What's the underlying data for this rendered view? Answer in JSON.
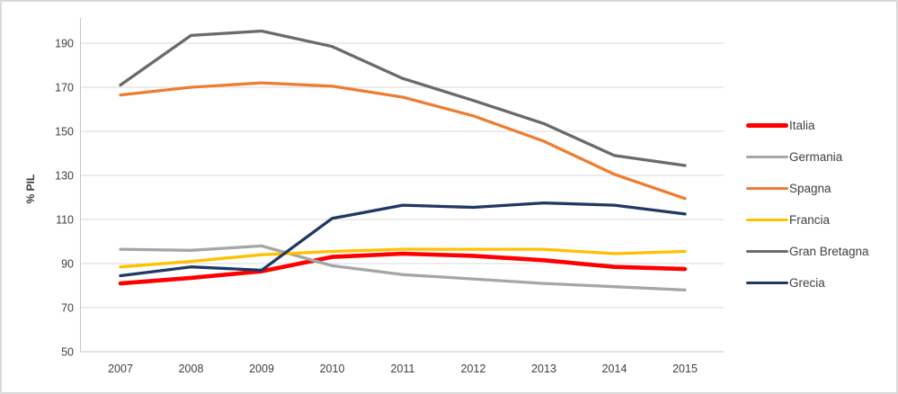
{
  "chart_data": {
    "type": "line",
    "title": "",
    "xlabel": "",
    "ylabel": "% PIL",
    "categories": [
      "2007",
      "2008",
      "2009",
      "2010",
      "2011",
      "2012",
      "2013",
      "2014",
      "2015"
    ],
    "yticks": [
      50,
      70,
      90,
      110,
      130,
      150,
      170,
      190
    ],
    "ylim": [
      50,
      201
    ],
    "grid": true,
    "legend_position": "right",
    "axis_color": "#c6c6c6",
    "gridline_color": "#d9d9d9",
    "tick_label_color": "#404040",
    "series": [
      {
        "name": "Italia",
        "color": "#fe0000",
        "width": 4.6,
        "thick": true,
        "values": [
          81,
          83.5,
          86.5,
          93,
          94.5,
          93.5,
          91.5,
          88.5,
          87.5
        ]
      },
      {
        "name": "Germania",
        "color": "#a6a6a6",
        "width": 3.3,
        "thick": false,
        "values": [
          96.5,
          96,
          98,
          89,
          85,
          83,
          81,
          79.5,
          78
        ]
      },
      {
        "name": "Spagna",
        "color": "#ed7d31",
        "width": 3.3,
        "thick": false,
        "values": [
          166.5,
          170,
          172,
          170.5,
          165.5,
          157,
          145.5,
          130.5,
          119.5
        ]
      },
      {
        "name": "Francia",
        "color": "#ffc000",
        "width": 3.3,
        "thick": false,
        "values": [
          88.5,
          91,
          94,
          95.5,
          96.5,
          96.5,
          96.5,
          94.5,
          95.5
        ]
      },
      {
        "name": "Gran Bretagna",
        "color": "#6a6a6a",
        "width": 3.3,
        "thick": false,
        "values": [
          171,
          193.5,
          195.5,
          188.5,
          174,
          164,
          153.5,
          139,
          134.5
        ]
      },
      {
        "name": "Grecia",
        "color": "#1f3864",
        "width": 3.3,
        "thick": false,
        "values": [
          84.5,
          88.5,
          87,
          110.5,
          116.5,
          115.5,
          117.5,
          116.5,
          112.5
        ]
      }
    ]
  }
}
